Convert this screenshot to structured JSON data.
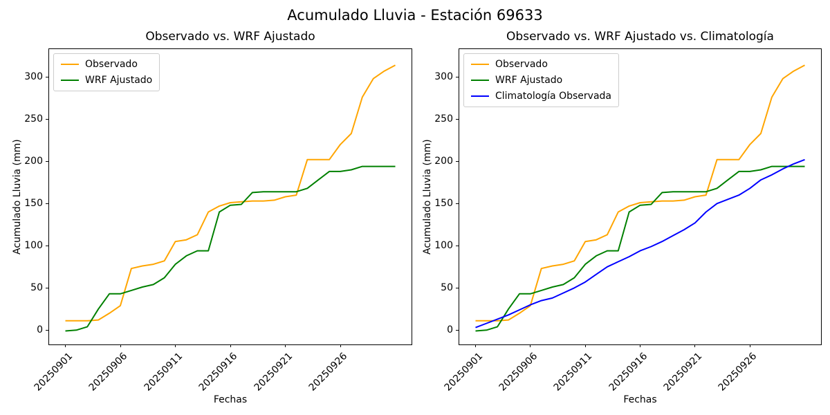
{
  "suptitle": "Acumulado Lluvia - Estación 69633",
  "colors": {
    "observado": "#FFA500",
    "wrf_ajustado": "#008000",
    "climatologia": "#0000FF",
    "axis": "#000000",
    "legend_border": "#cccccc"
  },
  "axes_common": {
    "xlabel": "Fechas",
    "ylabel": "Acumulado Lluvia (mm)",
    "yticks": [
      0,
      50,
      100,
      150,
      200,
      250,
      300
    ],
    "ylim": [
      -17,
      333
    ],
    "xtick_positions": [
      0,
      5,
      10,
      15,
      20,
      25
    ],
    "xtick_labels": [
      "20250901",
      "20250906",
      "20250911",
      "20250916",
      "20250921",
      "20250926"
    ],
    "xtick_rotation_deg": 45
  },
  "chart_data": [
    {
      "type": "line",
      "title": "Observado vs. WRF Ajustado",
      "xlabel": "Fechas",
      "ylabel": "Acumulado Lluvia (mm)",
      "x_days_from_20250901": [
        0,
        1,
        2,
        3,
        4,
        5,
        6,
        7,
        8,
        9,
        10,
        11,
        12,
        13,
        14,
        15,
        16,
        17,
        18,
        19,
        20,
        21,
        22,
        23,
        24,
        25,
        26,
        27,
        28,
        29,
        30
      ],
      "legend_position": "upper left",
      "grid": false,
      "series": [
        {
          "name": "Observado",
          "color": "#FFA500",
          "values": [
            11,
            11,
            11,
            12,
            20,
            29,
            73,
            76,
            78,
            82,
            105,
            107,
            113,
            140,
            147,
            151,
            152,
            153,
            153,
            154,
            158,
            160,
            202,
            202,
            202,
            220,
            233,
            276,
            298,
            307,
            314
          ]
        },
        {
          "name": "WRF Ajustado",
          "color": "#008000",
          "values": [
            -1,
            0,
            4,
            25,
            43,
            43,
            47,
            51,
            54,
            62,
            78,
            88,
            94,
            94,
            140,
            148,
            149,
            163,
            164,
            164,
            164,
            164,
            168,
            178,
            188,
            188,
            190,
            194,
            194,
            194,
            194
          ]
        }
      ]
    },
    {
      "type": "line",
      "title": "Observado vs. WRF Ajustado vs. Climatología",
      "xlabel": "Fechas",
      "ylabel": "Acumulado Lluvia (mm)",
      "x_days_from_20250901": [
        0,
        1,
        2,
        3,
        4,
        5,
        6,
        7,
        8,
        9,
        10,
        11,
        12,
        13,
        14,
        15,
        16,
        17,
        18,
        19,
        20,
        21,
        22,
        23,
        24,
        25,
        26,
        27,
        28,
        29,
        30
      ],
      "legend_position": "upper left",
      "grid": false,
      "series": [
        {
          "name": "Observado",
          "color": "#FFA500",
          "values": [
            11,
            11,
            11,
            12,
            20,
            29,
            73,
            76,
            78,
            82,
            105,
            107,
            113,
            140,
            147,
            151,
            152,
            153,
            153,
            154,
            158,
            160,
            202,
            202,
            202,
            220,
            233,
            276,
            298,
            307,
            314
          ]
        },
        {
          "name": "WRF Ajustado",
          "color": "#008000",
          "values": [
            -1,
            0,
            4,
            25,
            43,
            43,
            47,
            51,
            54,
            62,
            78,
            88,
            94,
            94,
            140,
            148,
            149,
            163,
            164,
            164,
            164,
            164,
            168,
            178,
            188,
            188,
            190,
            194,
            194,
            194,
            194
          ]
        },
        {
          "name": "Climatología Observada",
          "color": "#0000FF",
          "values": [
            3,
            8,
            13,
            18,
            24,
            30,
            35,
            38,
            44,
            50,
            57,
            66,
            75,
            81,
            87,
            94,
            99,
            105,
            112,
            119,
            127,
            140,
            150,
            155,
            160,
            168,
            178,
            184,
            191,
            197,
            202
          ]
        }
      ]
    }
  ]
}
